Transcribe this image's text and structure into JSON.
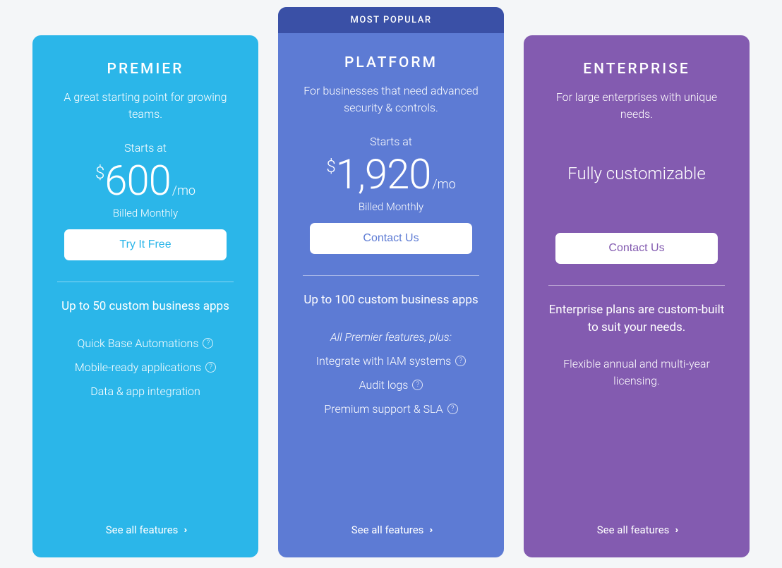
{
  "colors": {
    "page_bg": "#f4f6f8",
    "premier": "#2bb6e9",
    "platform": "#5d7bd4",
    "platform_badge": "#3a50a6",
    "enterprise": "#835bb0",
    "white": "#ffffff"
  },
  "tiers": {
    "premier": {
      "name": "PREMIER",
      "tagline": "A great starting point for growing teams.",
      "starts_at": "Starts at",
      "currency": "$",
      "price": "600",
      "per": "/mo",
      "billed": "Billed Monthly",
      "cta": "Try It Free",
      "headline": "Up to 50 custom business apps",
      "features": {
        "f0": "Quick Base Automations",
        "f1": "Mobile-ready applications",
        "f2": "Data & app integration"
      },
      "see_all": "See all features"
    },
    "platform": {
      "badge": "MOST POPULAR",
      "name": "PLATFORM",
      "tagline": "For businesses that need advanced security & controls.",
      "starts_at": "Starts at",
      "currency": "$",
      "price": "1,920",
      "per": "/mo",
      "billed": "Billed Monthly",
      "cta": "Contact Us",
      "headline": "Up to 100 custom business apps",
      "features_lead": "All Premier features, plus:",
      "features": {
        "f0": "Integrate with IAM systems",
        "f1": "Audit logs",
        "f2": "Premium support & SLA"
      },
      "see_all": "See all features"
    },
    "enterprise": {
      "name": "ENTERPRISE",
      "tagline": "For large enterprises with unique needs.",
      "custom_price": "Fully customizable",
      "cta": "Contact Us",
      "headline": "Enterprise plans are custom-built to suit your needs.",
      "subline": "Flexible annual and multi-year licensing.",
      "see_all": "See all features"
    }
  }
}
